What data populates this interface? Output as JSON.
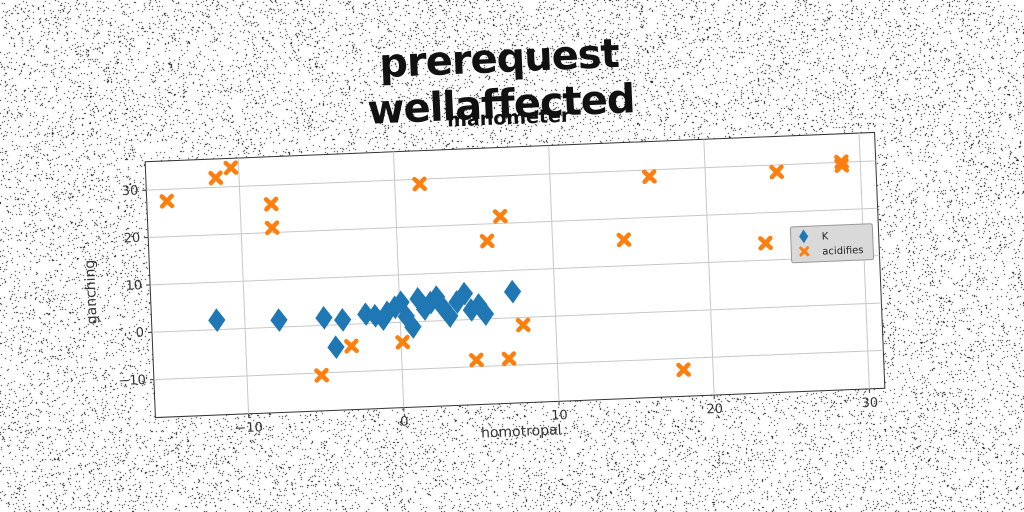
{
  "suptitle": "prerequest wellaffected",
  "chart_data": {
    "type": "scatter",
    "title": "manometer",
    "xlabel": "homotropal",
    "ylabel": "ganching",
    "xlim": [
      -16,
      31
    ],
    "ylim": [
      -18,
      36
    ],
    "xticks": [
      -10,
      0,
      10,
      20,
      30
    ],
    "yticks": [
      -10,
      0,
      10,
      20,
      30
    ],
    "grid": true,
    "legend_position": "center-right",
    "series": [
      {
        "name": "K",
        "marker": "diamond",
        "color": "#1f77b4",
        "points": [
          [
            -11.8,
            2
          ],
          [
            -7.8,
            1.5
          ],
          [
            -4.9,
            1.6
          ],
          [
            -3.7,
            1
          ],
          [
            -4.2,
            -4.7
          ],
          [
            -2.2,
            2
          ],
          [
            -1.6,
            1.6
          ],
          [
            -1.1,
            0.8
          ],
          [
            -0.8,
            2.2
          ],
          [
            -0.3,
            3.2
          ],
          [
            0.1,
            4.2
          ],
          [
            0.4,
            1.2
          ],
          [
            0.8,
            -1.1
          ],
          [
            1.2,
            4.8
          ],
          [
            1.6,
            2.6
          ],
          [
            2.0,
            3.9
          ],
          [
            2.4,
            5.0
          ],
          [
            2.8,
            2.7
          ],
          [
            3.2,
            0.9
          ],
          [
            3.7,
            3.8
          ],
          [
            4.2,
            5.5
          ],
          [
            4.6,
            2.0
          ],
          [
            5.1,
            3.0
          ],
          [
            5.5,
            1.0
          ],
          [
            7.3,
            5.5
          ]
        ]
      },
      {
        "name": "acidifies",
        "marker": "x",
        "color": "#ff7f0e",
        "points": [
          [
            -14.7,
            27.5
          ],
          [
            -11.5,
            32
          ],
          [
            -10.5,
            34
          ],
          [
            -8,
            26
          ],
          [
            -8,
            21
          ],
          [
            -5.2,
            -10.5
          ],
          [
            -3.2,
            -4.6
          ],
          [
            0.1,
            -4.2
          ],
          [
            1.6,
            29
          ],
          [
            4.8,
            -8.6
          ],
          [
            5.8,
            16.4
          ],
          [
            6.7,
            21.5
          ],
          [
            6.9,
            -8.6
          ],
          [
            7.9,
            -1.6
          ],
          [
            14.6,
            15.5
          ],
          [
            16.4,
            28.6
          ],
          [
            18.1,
            -12.4
          ],
          [
            23.7,
            13.6
          ],
          [
            24.6,
            28.5
          ],
          [
            28.8,
            29.3
          ],
          [
            28.8,
            30.1
          ]
        ]
      }
    ]
  }
}
